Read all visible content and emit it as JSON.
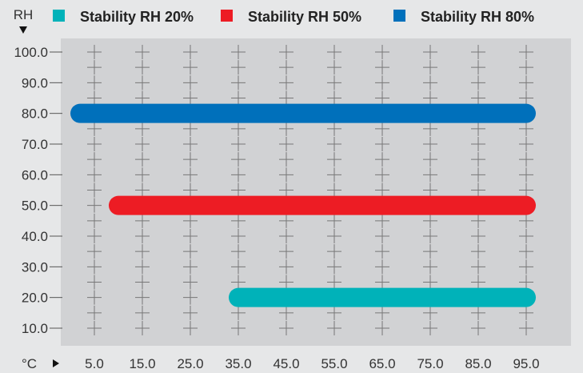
{
  "chart_data": {
    "type": "range-bar",
    "y_axis_label": "RH",
    "x_axis_label": "°C",
    "y_ticks": [
      "100.0",
      "90.0",
      "80.0",
      "70.0",
      "60.0",
      "50.0",
      "40.0",
      "30.0",
      "20.0",
      "10.0"
    ],
    "x_ticks": [
      "5.0",
      "15.0",
      "25.0",
      "35.0",
      "45.0",
      "55.0",
      "65.0",
      "75.0",
      "85.0",
      "95.0"
    ],
    "ylim": [
      5,
      102
    ],
    "xlim": [
      -2,
      104
    ],
    "grid": "cross-markers",
    "legend_placement": "top",
    "series": [
      {
        "name": "Stability RH 20%",
        "color": "#00b2b9",
        "rh": 20,
        "temp_from": 35,
        "temp_to": 95
      },
      {
        "name": "Stability RH 50%",
        "color": "#ed1c24",
        "rh": 50,
        "temp_from": 10,
        "temp_to": 95
      },
      {
        "name": "Stability RH 80%",
        "color": "#0070bb",
        "rh": 80,
        "temp_from": 2,
        "temp_to": 95
      }
    ]
  }
}
